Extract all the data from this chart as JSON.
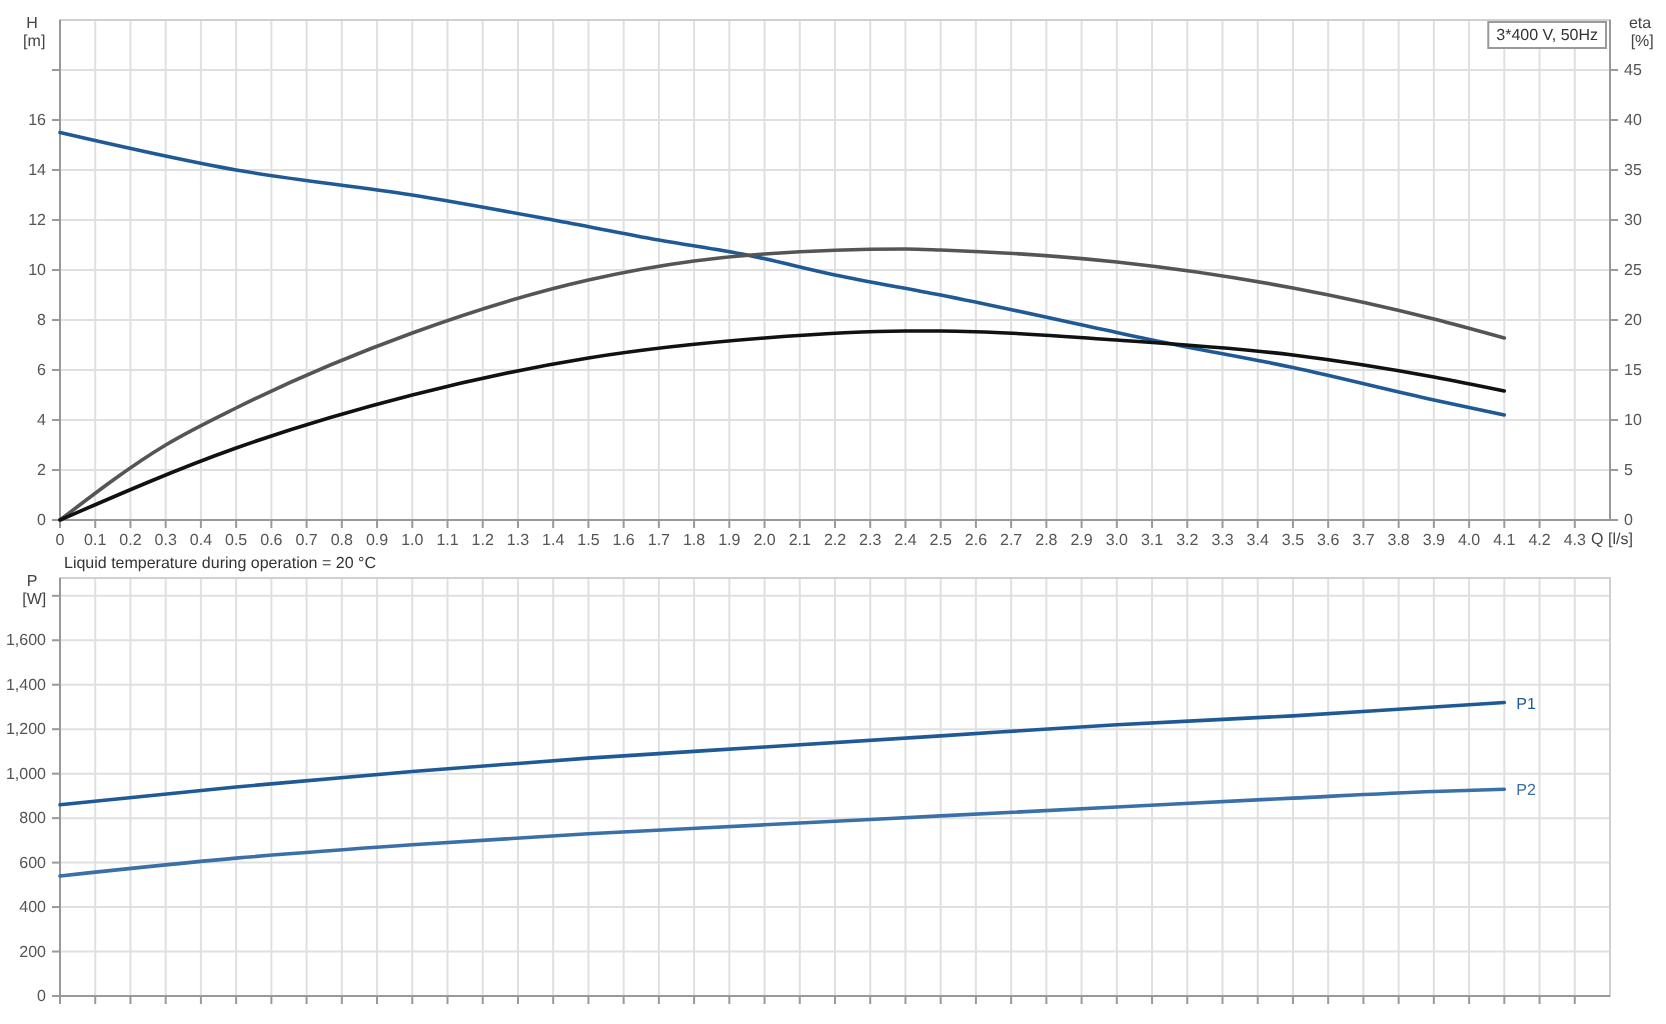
{
  "chart_data": [
    {
      "type": "line",
      "ylabel": "H [m]",
      "y2label": "eta [%]",
      "xlabel": "Q [l/s]",
      "annotations": [
        "3*400 V, 50Hz",
        "Liquid temperature during operation = 20 °C"
      ],
      "xlim": [
        0,
        4.4
      ],
      "ylim": [
        0,
        20
      ],
      "y2lim": [
        0,
        50
      ],
      "xticks": [
        0,
        0.1,
        0.2,
        0.3,
        0.4,
        0.5,
        0.6,
        0.7,
        0.8,
        0.9,
        {
          "value": 1,
          "label": "1.0"
        },
        1.1,
        1.2,
        1.3,
        1.4,
        1.5,
        1.6,
        1.7,
        1.8,
        1.9,
        {
          "value": 2,
          "label": "2.0"
        },
        2.1,
        2.2,
        2.3,
        2.4,
        2.5,
        2.6,
        2.7,
        2.8,
        2.9,
        {
          "value": 3,
          "label": "3.0"
        },
        3.1,
        3.2,
        3.3,
        3.4,
        3.5,
        3.6,
        3.7,
        3.8,
        3.9,
        {
          "value": 4,
          "label": "4.0"
        },
        4.1,
        4.2,
        4.3
      ],
      "yticks": [
        0,
        2,
        4,
        6,
        8,
        10,
        12,
        14,
        16,
        {
          "value": 18,
          "label": null
        }
      ],
      "y2ticks": [
        0,
        5,
        10,
        15,
        20,
        25,
        30,
        35,
        40,
        45
      ],
      "grid": true,
      "series": [
        {
          "color": "#1f5a96",
          "axis": "y",
          "x": [
            0,
            0.5,
            1.0,
            1.4,
            1.7,
            1.95,
            2.2,
            2.5,
            3.0,
            3.1,
            3.5,
            3.9,
            4.1
          ],
          "values": [
            15.5,
            14.0,
            13.0,
            12.0,
            11.2,
            10.6,
            9.8,
            9.0,
            7.5,
            7.2,
            6.1,
            4.8,
            4.2
          ]
        },
        {
          "color": "#555555",
          "axis": "y2",
          "x": [
            0,
            0.3,
            0.5,
            1.0,
            1.5,
            1.8,
            2.0,
            2.4,
            2.5,
            3.0,
            3.5,
            3.9,
            4.1
          ],
          "values": [
            0,
            7.5,
            11.2,
            18.7,
            24,
            25.9,
            26.6,
            27.1,
            27,
            25.8,
            23.2,
            20.1,
            18.2
          ]
        },
        {
          "color": "#111111",
          "axis": "y2",
          "x": [
            0,
            0.5,
            1.0,
            1.5,
            2.0,
            2.4,
            2.5,
            3.0,
            3.5,
            3.9,
            4.1
          ],
          "values": [
            0,
            7.2,
            12.5,
            16.2,
            18.2,
            18.9,
            18.9,
            18,
            16.5,
            14.3,
            12.9
          ]
        }
      ]
    },
    {
      "type": "line",
      "ylabel": "P [W]",
      "xlim": [
        0,
        4.4
      ],
      "ylim": [
        0,
        1880
      ],
      "tick_labels": "y",
      "grid": true,
      "xticks": [
        0,
        0.1,
        0.2,
        0.3,
        0.4,
        0.5,
        0.6,
        0.7,
        0.8,
        0.9,
        1,
        1.1,
        1.2,
        1.3,
        1.4,
        1.5,
        1.6,
        1.7,
        1.8,
        1.9,
        2,
        2.1,
        2.2,
        2.3,
        2.4,
        2.5,
        2.6,
        2.7,
        2.8,
        2.9,
        3,
        3.1,
        3.2,
        3.3,
        3.4,
        3.5,
        3.6,
        3.7,
        3.8,
        3.9,
        4,
        4.1,
        4.2,
        4.3
      ],
      "yticks": [
        0,
        200,
        400,
        600,
        800,
        {
          "value": 1000,
          "label": "1,000"
        },
        {
          "value": 1200,
          "label": "1,200"
        },
        {
          "value": 1400,
          "label": "1,400"
        },
        {
          "value": 1600,
          "label": "1,600"
        },
        {
          "value": 1800,
          "label": null
        }
      ],
      "series": [
        {
          "name": "P1",
          "color": "#1f5a96",
          "x": [
            0,
            0.5,
            1.0,
            1.5,
            2.0,
            2.5,
            3.0,
            3.5,
            3.9,
            4.1
          ],
          "values": [
            860,
            940,
            1010,
            1070,
            1120,
            1170,
            1220,
            1260,
            1300,
            1320
          ]
        },
        {
          "name": "P2",
          "color": "#3a6fa8",
          "x": [
            0,
            0.5,
            1.0,
            1.5,
            2.0,
            2.5,
            3.0,
            3.5,
            3.9,
            4.1
          ],
          "values": [
            540,
            620,
            680,
            730,
            770,
            810,
            850,
            890,
            920,
            930
          ]
        }
      ]
    }
  ]
}
